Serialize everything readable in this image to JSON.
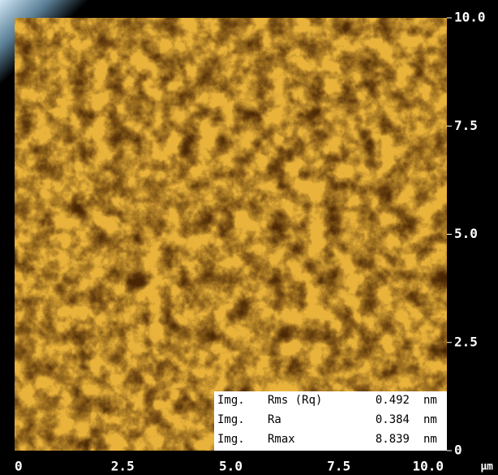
{
  "image": {
    "x_axis": {
      "range": [
        0,
        10
      ],
      "ticks": [
        {
          "value": 0,
          "label": "0"
        },
        {
          "value": 2.5,
          "label": "2.5"
        },
        {
          "value": 5,
          "label": "5.0"
        },
        {
          "value": 7.5,
          "label": "7.5"
        },
        {
          "value": 10,
          "label": "10.0"
        }
      ],
      "unit": "µm"
    },
    "y_axis": {
      "range": [
        0,
        10
      ],
      "ticks": [
        {
          "value": 0,
          "label": "0"
        },
        {
          "value": 2.5,
          "label": "2.5"
        },
        {
          "value": 5,
          "label": "5.0"
        },
        {
          "value": 7.5,
          "label": "7.5"
        },
        {
          "value": 10,
          "label": "10.0"
        }
      ]
    },
    "stats": [
      {
        "prefix": "Img.",
        "name": "Rms (Rq)",
        "value": "0.492",
        "unit": "nm"
      },
      {
        "prefix": "Img.",
        "name": "Ra",
        "value": "0.384",
        "unit": "nm"
      },
      {
        "prefix": "Img.",
        "name": "Rmax",
        "value": "8.839",
        "unit": "nm"
      }
    ]
  }
}
